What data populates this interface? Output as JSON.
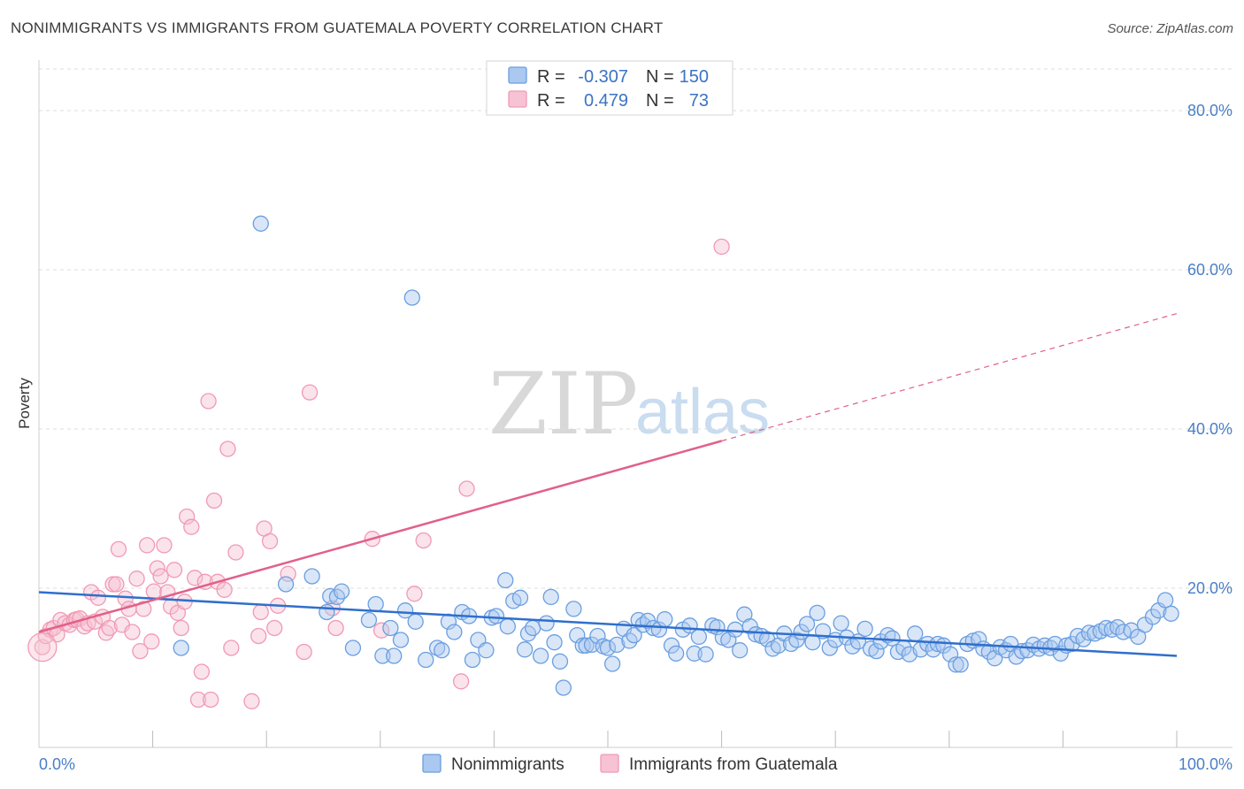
{
  "title": "NONIMMIGRANTS VS IMMIGRANTS FROM GUATEMALA POVERTY CORRELATION CHART",
  "source": "Source: ZipAtlas.com",
  "watermark": {
    "zip": "ZIP",
    "atlas": "atlas"
  },
  "colors": {
    "blue": "#6a9fe0",
    "blue_fill": "#aac8f0",
    "blue_line": "#2f6fcc",
    "pink": "#f09ab5",
    "pink_fill": "#f7c2d3",
    "pink_line": "#e0618a",
    "grid": "#dddddd",
    "tick_text": "#4a7fc7"
  },
  "legend": {
    "rows": [
      {
        "r_label": "R =",
        "r_value": "-0.307",
        "n_label": "N =",
        "n_value": "150"
      },
      {
        "r_label": "R =",
        "r_value": "0.479",
        "n_label": "N =",
        "n_value": "73"
      }
    ]
  },
  "bottom_legend": [
    "Nonimmigrants",
    "Immigrants from Guatemala"
  ],
  "chart_data": {
    "type": "scatter",
    "title": "NONIMMIGRANTS VS IMMIGRANTS FROM GUATEMALA POVERTY CORRELATION CHART",
    "xlabel": "",
    "ylabel": "Poverty",
    "xlim": [
      0,
      100
    ],
    "ylim": [
      0,
      85
    ],
    "x_tick_labels": [
      "0.0%",
      "100.0%"
    ],
    "y_ticks": [
      20,
      40,
      60,
      80
    ],
    "y_tick_labels": [
      "20.0%",
      "40.0%",
      "60.0%",
      "80.0%"
    ],
    "grid": true,
    "legend_position": "top-center",
    "series": [
      {
        "name": "Nonimmigrants",
        "color": "#6a9fe0",
        "r": -0.307,
        "n": 150,
        "trend": {
          "x": [
            0,
            100
          ],
          "y": [
            19.5,
            11.5
          ],
          "dashed_extension": false
        },
        "points": [
          [
            19.5,
            65.8
          ],
          [
            32.8,
            56.5
          ],
          [
            12.5,
            12.5
          ],
          [
            21.7,
            20.5
          ],
          [
            24.0,
            21.5
          ],
          [
            25.3,
            17.0
          ],
          [
            25.6,
            19.0
          ],
          [
            26.2,
            18.9
          ],
          [
            26.6,
            19.6
          ],
          [
            27.6,
            12.5
          ],
          [
            29.0,
            16.0
          ],
          [
            29.6,
            18.0
          ],
          [
            30.2,
            11.5
          ],
          [
            30.9,
            15.0
          ],
          [
            31.2,
            11.5
          ],
          [
            31.8,
            13.5
          ],
          [
            32.2,
            17.2
          ],
          [
            33.1,
            15.8
          ],
          [
            34.0,
            11.0
          ],
          [
            35.0,
            12.5
          ],
          [
            35.4,
            12.2
          ],
          [
            36.0,
            15.8
          ],
          [
            36.5,
            14.5
          ],
          [
            37.2,
            17.0
          ],
          [
            37.8,
            16.5
          ],
          [
            38.1,
            11.0
          ],
          [
            38.6,
            13.5
          ],
          [
            39.3,
            12.2
          ],
          [
            39.8,
            16.3
          ],
          [
            40.2,
            16.5
          ],
          [
            41.0,
            21.0
          ],
          [
            41.2,
            15.2
          ],
          [
            41.7,
            18.4
          ],
          [
            42.3,
            18.8
          ],
          [
            42.7,
            12.3
          ],
          [
            43.0,
            14.3
          ],
          [
            43.4,
            15.0
          ],
          [
            44.1,
            11.5
          ],
          [
            44.6,
            15.6
          ],
          [
            45.0,
            18.9
          ],
          [
            45.3,
            13.2
          ],
          [
            45.8,
            10.8
          ],
          [
            46.1,
            7.5
          ],
          [
            47.0,
            17.4
          ],
          [
            47.3,
            14.1
          ],
          [
            47.8,
            12.8
          ],
          [
            48.1,
            12.8
          ],
          [
            48.6,
            12.9
          ],
          [
            49.1,
            14.0
          ],
          [
            49.6,
            12.7
          ],
          [
            50.0,
            12.5
          ],
          [
            50.4,
            10.5
          ],
          [
            50.8,
            12.9
          ],
          [
            51.4,
            14.9
          ],
          [
            51.9,
            13.4
          ],
          [
            52.3,
            14.1
          ],
          [
            52.7,
            16.0
          ],
          [
            53.1,
            15.4
          ],
          [
            53.5,
            15.9
          ],
          [
            54.0,
            15.0
          ],
          [
            54.5,
            14.8
          ],
          [
            55.0,
            16.1
          ],
          [
            55.6,
            12.8
          ],
          [
            56.0,
            11.8
          ],
          [
            56.6,
            14.8
          ],
          [
            57.2,
            15.3
          ],
          [
            57.6,
            11.8
          ],
          [
            58.0,
            13.9
          ],
          [
            58.6,
            11.7
          ],
          [
            59.2,
            15.3
          ],
          [
            59.6,
            15.1
          ],
          [
            60.1,
            13.8
          ],
          [
            60.6,
            13.5
          ],
          [
            61.2,
            14.8
          ],
          [
            61.6,
            12.2
          ],
          [
            62.0,
            16.7
          ],
          [
            62.5,
            15.2
          ],
          [
            63.0,
            14.2
          ],
          [
            63.5,
            14.0
          ],
          [
            64.0,
            13.6
          ],
          [
            64.5,
            12.4
          ],
          [
            65.0,
            12.8
          ],
          [
            65.5,
            14.3
          ],
          [
            66.1,
            13.0
          ],
          [
            66.6,
            13.5
          ],
          [
            67.0,
            14.5
          ],
          [
            67.5,
            15.5
          ],
          [
            68.0,
            13.2
          ],
          [
            68.4,
            16.9
          ],
          [
            68.9,
            14.6
          ],
          [
            69.5,
            12.5
          ],
          [
            70.0,
            13.5
          ],
          [
            70.5,
            15.6
          ],
          [
            71.0,
            13.8
          ],
          [
            71.5,
            12.7
          ],
          [
            72.0,
            13.3
          ],
          [
            72.6,
            14.9
          ],
          [
            73.1,
            12.4
          ],
          [
            73.6,
            12.1
          ],
          [
            74.0,
            13.3
          ],
          [
            74.6,
            14.1
          ],
          [
            75.0,
            13.7
          ],
          [
            75.5,
            12.0
          ],
          [
            76.0,
            12.5
          ],
          [
            76.5,
            11.7
          ],
          [
            77.0,
            14.3
          ],
          [
            77.5,
            12.3
          ],
          [
            78.1,
            13.0
          ],
          [
            78.6,
            12.3
          ],
          [
            79.0,
            13.0
          ],
          [
            79.5,
            12.8
          ],
          [
            80.1,
            11.7
          ],
          [
            80.6,
            10.4
          ],
          [
            81.0,
            10.4
          ],
          [
            81.6,
            13.0
          ],
          [
            82.1,
            13.4
          ],
          [
            82.6,
            13.6
          ],
          [
            83.0,
            12.4
          ],
          [
            83.5,
            12.0
          ],
          [
            84.0,
            11.2
          ],
          [
            84.5,
            12.6
          ],
          [
            85.0,
            12.2
          ],
          [
            85.4,
            13.0
          ],
          [
            85.9,
            11.4
          ],
          [
            86.4,
            12.1
          ],
          [
            86.9,
            12.2
          ],
          [
            87.4,
            12.9
          ],
          [
            87.9,
            12.4
          ],
          [
            88.4,
            12.8
          ],
          [
            88.9,
            12.5
          ],
          [
            89.3,
            13.0
          ],
          [
            89.8,
            11.8
          ],
          [
            90.3,
            12.8
          ],
          [
            90.8,
            13.0
          ],
          [
            91.3,
            14.0
          ],
          [
            91.8,
            13.6
          ],
          [
            92.3,
            14.4
          ],
          [
            92.8,
            14.3
          ],
          [
            93.3,
            14.6
          ],
          [
            93.8,
            15.0
          ],
          [
            94.3,
            14.8
          ],
          [
            94.8,
            15.1
          ],
          [
            95.3,
            14.5
          ],
          [
            96.0,
            14.7
          ],
          [
            96.6,
            13.9
          ],
          [
            97.2,
            15.4
          ],
          [
            97.9,
            16.4
          ],
          [
            98.4,
            17.2
          ],
          [
            99.0,
            18.5
          ],
          [
            99.5,
            16.8
          ]
        ]
      },
      {
        "name": "Immigrants from Guatemala",
        "color": "#f09ab5",
        "r": 0.479,
        "n": 73,
        "trend": {
          "x": [
            0,
            60
          ],
          "y": [
            14.5,
            38.5
          ],
          "dashed_extension": {
            "x": [
              60,
              100
            ],
            "y": [
              38.5,
              54.5
            ]
          }
        },
        "points": [
          [
            0.3,
            12.6
          ],
          [
            0.6,
            14.0
          ],
          [
            1.0,
            14.8
          ],
          [
            1.3,
            15.0
          ],
          [
            1.6,
            14.2
          ],
          [
            1.9,
            16.0
          ],
          [
            2.3,
            15.6
          ],
          [
            2.7,
            15.4
          ],
          [
            3.1,
            16.0
          ],
          [
            3.3,
            16.1
          ],
          [
            3.6,
            16.2
          ],
          [
            4.0,
            15.2
          ],
          [
            4.3,
            15.6
          ],
          [
            4.6,
            19.5
          ],
          [
            4.9,
            15.8
          ],
          [
            5.2,
            18.8
          ],
          [
            5.6,
            16.4
          ],
          [
            5.9,
            14.4
          ],
          [
            6.2,
            15.0
          ],
          [
            6.5,
            20.5
          ],
          [
            6.8,
            20.5
          ],
          [
            7.0,
            24.9
          ],
          [
            7.3,
            15.4
          ],
          [
            7.6,
            18.7
          ],
          [
            7.9,
            17.4
          ],
          [
            8.2,
            14.5
          ],
          [
            8.6,
            21.2
          ],
          [
            8.9,
            12.1
          ],
          [
            9.2,
            17.4
          ],
          [
            9.5,
            25.4
          ],
          [
            9.9,
            13.3
          ],
          [
            10.1,
            19.6
          ],
          [
            10.4,
            22.5
          ],
          [
            10.7,
            21.5
          ],
          [
            11.0,
            25.4
          ],
          [
            11.3,
            19.5
          ],
          [
            11.6,
            17.7
          ],
          [
            11.9,
            22.3
          ],
          [
            12.2,
            16.9
          ],
          [
            12.5,
            15.0
          ],
          [
            12.8,
            18.3
          ],
          [
            13.0,
            29.0
          ],
          [
            13.4,
            27.7
          ],
          [
            13.7,
            21.3
          ],
          [
            14.0,
            6.0
          ],
          [
            14.3,
            9.5
          ],
          [
            14.6,
            20.8
          ],
          [
            14.9,
            43.5
          ],
          [
            15.1,
            6.0
          ],
          [
            15.4,
            31.0
          ],
          [
            15.7,
            20.8
          ],
          [
            16.3,
            19.8
          ],
          [
            16.6,
            37.5
          ],
          [
            16.9,
            12.5
          ],
          [
            17.3,
            24.5
          ],
          [
            18.7,
            5.8
          ],
          [
            19.3,
            14.0
          ],
          [
            19.5,
            17.0
          ],
          [
            19.8,
            27.5
          ],
          [
            20.3,
            25.9
          ],
          [
            20.7,
            15.0
          ],
          [
            21.0,
            17.8
          ],
          [
            21.9,
            21.8
          ],
          [
            23.3,
            12.0
          ],
          [
            23.8,
            44.6
          ],
          [
            25.8,
            17.5
          ],
          [
            26.1,
            15.0
          ],
          [
            29.3,
            26.2
          ],
          [
            30.1,
            14.7
          ],
          [
            33.0,
            19.3
          ],
          [
            33.8,
            26.0
          ],
          [
            37.1,
            8.3
          ],
          [
            37.6,
            32.5
          ],
          [
            60.0,
            62.9
          ]
        ]
      }
    ]
  }
}
